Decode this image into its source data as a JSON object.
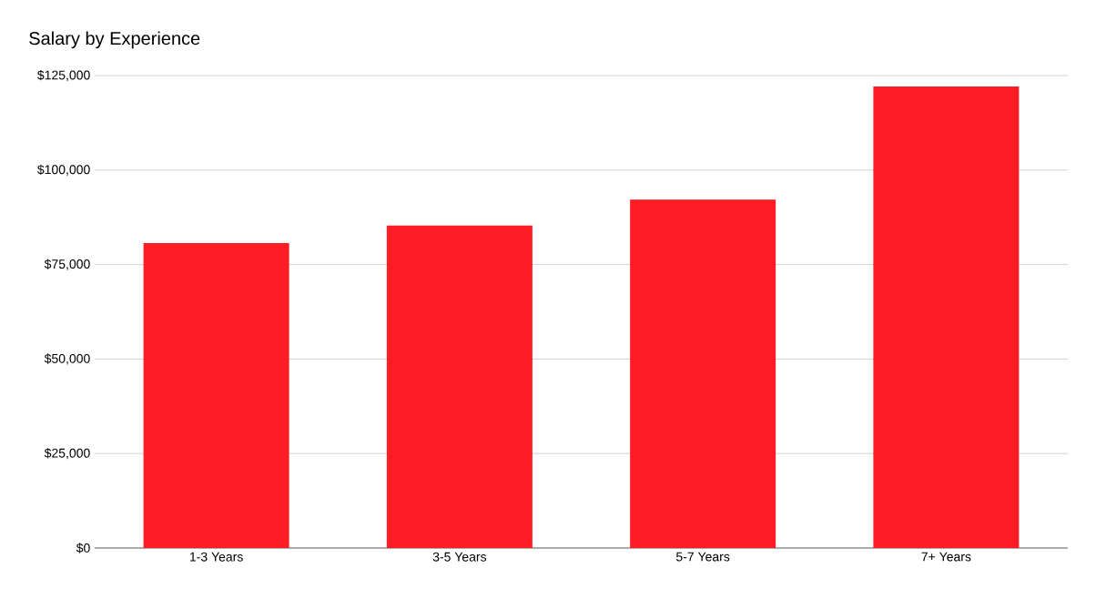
{
  "chart_data": {
    "type": "bar",
    "title": "Salary by Experience",
    "categories": [
      "1-3 Years",
      "3-5 Years",
      "5-7 Years",
      "7+ Years"
    ],
    "values": [
      80700,
      85300,
      92200,
      122100
    ],
    "color": "#ff1d25",
    "ylim": [
      0,
      125000
    ],
    "yticks": [
      {
        "value": 0,
        "label": "$0"
      },
      {
        "value": 25000,
        "label": "$25,000"
      },
      {
        "value": 50000,
        "label": "$50,000"
      },
      {
        "value": 75000,
        "label": "$75,000"
      },
      {
        "value": 100000,
        "label": "$100,000"
      },
      {
        "value": 125000,
        "label": "$125,000"
      }
    ],
    "grid": "y"
  }
}
